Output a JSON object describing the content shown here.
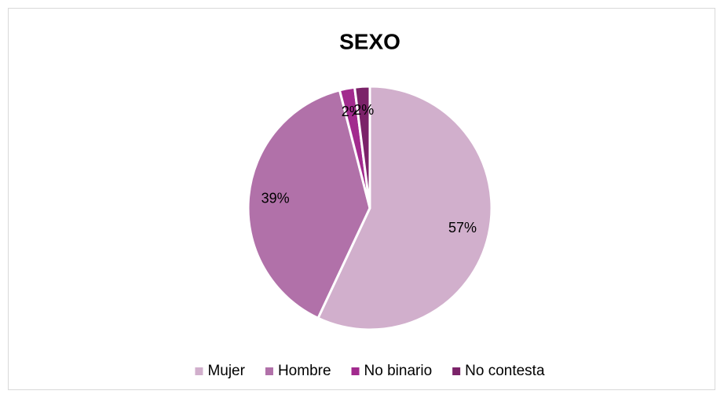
{
  "chart_data": {
    "type": "pie",
    "title": "SEXO",
    "categories": [
      "Mujer",
      "Hombre",
      "No binario",
      "No contesta"
    ],
    "values": [
      57,
      39,
      2,
      2
    ],
    "value_labels": [
      "57%",
      "39%",
      "2%",
      "2%"
    ],
    "colors": [
      "#d1afcc",
      "#b171a9",
      "#a22a8e",
      "#7b2369"
    ],
    "legend": "bottom"
  }
}
